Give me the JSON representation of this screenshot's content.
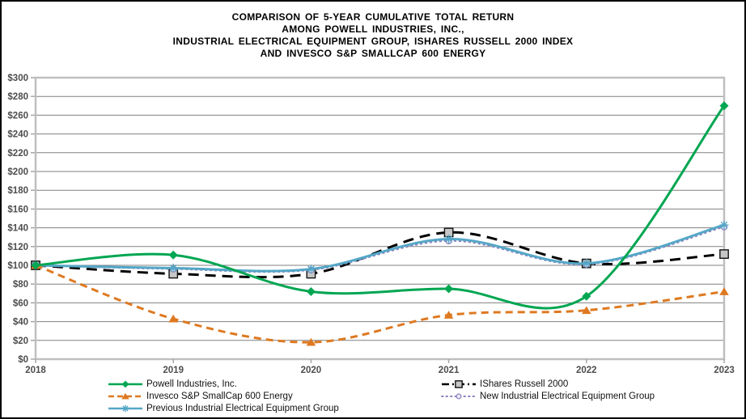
{
  "title": {
    "lines": [
      "COMPARISON OF 5-YEAR CUMULATIVE TOTAL RETURN",
      "AMONG POWELL INDUSTRIES, INC.,",
      "INDUSTRIAL ELECTRICAL EQUIPMENT GROUP, ISHARES RUSSELL 2000 INDEX",
      "AND INVESCO S&P SMALLCAP 600 ENERGY"
    ]
  },
  "chart_data": {
    "type": "line",
    "title": "COMPARISON OF 5-YEAR CUMULATIVE TOTAL RETURN AMONG POWELL INDUSTRIES, INC., INDUSTRIAL ELECTRICAL EQUIPMENT GROUP, ISHARES RUSSELL 2000 INDEX AND INVESCO S&P SMALLCAP 600 ENERGY",
    "categories": [
      "2018",
      "2019",
      "2020",
      "2021",
      "2022",
      "2023"
    ],
    "ylim": [
      0,
      300
    ],
    "ytick_step": 20,
    "ytick_labels": [
      "$0",
      "$20",
      "$40",
      "$60",
      "$80",
      "$100",
      "$120",
      "$140",
      "$160",
      "$180",
      "$200",
      "$220",
      "$240",
      "$260",
      "$280",
      "$300"
    ],
    "grid": true,
    "legend_position": "bottom",
    "line_smoothing": true,
    "colors": {
      "gridline": "#808080",
      "plot_border": "#BFBFBF",
      "tick": "#A6A6A6",
      "axis_text": "#4d4d4d"
    },
    "series": [
      {
        "name": "Powell Industries, Inc.",
        "values": [
          100,
          111,
          72,
          75,
          67,
          270
        ],
        "color": "#00A651",
        "dash": "",
        "legend_dash": "",
        "marker": "diamond",
        "marker_fill": "#00A651",
        "width": 3,
        "z": 5
      },
      {
        "name": "Invesco S&P SmallCap 600 Energy",
        "values": [
          100,
          43,
          18,
          47,
          52,
          72
        ],
        "color": "#DE7921",
        "dash": "9 6",
        "legend_dash": "7 4",
        "marker": "triangle",
        "marker_fill": "#DE7921",
        "width": 3,
        "z": 4
      },
      {
        "name": "Previous Industrial Electrical Equipment Group",
        "values": [
          100,
          97,
          96,
          128,
          102,
          143
        ],
        "color": "#54A7C7",
        "dash": "",
        "legend_dash": "",
        "marker": "asterisk",
        "marker_fill": "#54A7C7",
        "width": 3,
        "z": 3
      },
      {
        "name": "IShares Russell 2000",
        "values": [
          100,
          91,
          91,
          135,
          102,
          112
        ],
        "color": "#000000",
        "dash": "13 8",
        "legend_dash": "9 4 2 4",
        "marker": "square",
        "marker_fill": "#C6C6C6",
        "width": 3,
        "z": 1
      },
      {
        "name": "New Industrial Electrical Equipment Group",
        "values": [
          100,
          96,
          95,
          126,
          101,
          141
        ],
        "color": "#8C83BE",
        "dash": "1.5 4.5",
        "legend_dash": "1.5 4",
        "marker": "circle",
        "marker_fill": "#EDEBF5",
        "width": 2,
        "z": 2,
        "linecap": "round"
      }
    ]
  }
}
